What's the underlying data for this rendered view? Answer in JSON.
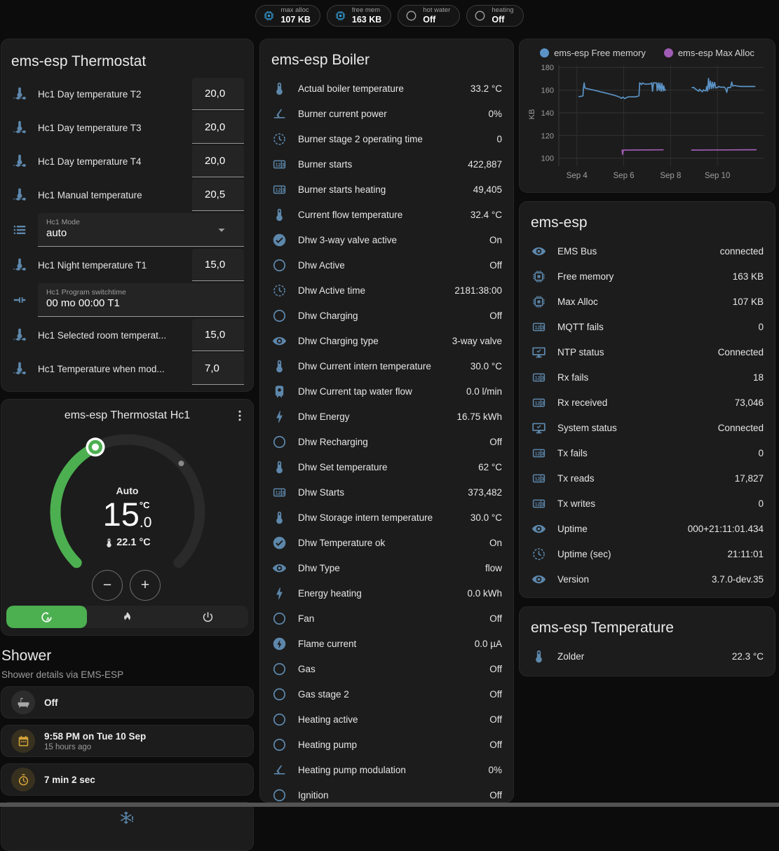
{
  "header": {
    "pills": [
      {
        "icon": "chip-icon",
        "tone": "blue",
        "label": "max alloc",
        "value": "107 KB"
      },
      {
        "icon": "chip-icon",
        "tone": "blue",
        "label": "free mem",
        "value": "163 KB"
      },
      {
        "icon": "circle-icon",
        "tone": "gray",
        "label": "hot water",
        "value": "Off"
      },
      {
        "icon": "circle-icon",
        "tone": "gray",
        "label": "heating",
        "value": "Off"
      }
    ]
  },
  "thermostat_card": {
    "title": "ems-esp Thermostat",
    "rows": [
      {
        "type": "number",
        "icon": "thermometer-water-icon",
        "label": "Hc1 Day temperature T2",
        "value": "20,0"
      },
      {
        "type": "number",
        "icon": "thermometer-water-icon",
        "label": "Hc1 Day temperature T3",
        "value": "20,0"
      },
      {
        "type": "number",
        "icon": "thermometer-water-icon",
        "label": "Hc1 Day temperature T4",
        "value": "20,0"
      },
      {
        "type": "number",
        "icon": "thermometer-water-icon",
        "label": "Hc1 Manual temperature",
        "value": "20,5"
      },
      {
        "type": "select",
        "icon": "format-list-icon",
        "label": "Hc1 Mode",
        "value": "auto"
      },
      {
        "type": "number",
        "icon": "thermometer-water-icon",
        "label": "Hc1 Night temperature T1",
        "value": "15,0"
      },
      {
        "type": "text",
        "icon": "pipe-valve-icon",
        "label": "Hc1 Program switchtime",
        "value": "00 mo 00:00 T1"
      },
      {
        "type": "number",
        "icon": "thermometer-water-icon",
        "label": "Hc1 Selected room temperat...",
        "value": "15,0"
      },
      {
        "type": "number",
        "icon": "thermometer-water-icon",
        "label": "Hc1 Temperature when mod...",
        "value": "7,0"
      }
    ]
  },
  "dial_card": {
    "title": "ems-esp Thermostat Hc1",
    "mode_label": "Auto",
    "target_whole": "15",
    "target_fraction": ".0",
    "target_unit": "°C",
    "current_temperature": "22.1 °C",
    "minus_label": "−",
    "plus_label": "+",
    "modes": [
      {
        "icon": "auto-mode-icon",
        "active": true
      },
      {
        "icon": "flame-icon",
        "active": false
      },
      {
        "icon": "power-icon",
        "active": false
      }
    ]
  },
  "shower": {
    "title": "Shower",
    "subtitle": "Shower details via EMS-ESP",
    "cards": [
      {
        "icon": "bathtub-icon",
        "tone": "gray",
        "primary": "Off",
        "secondary": ""
      },
      {
        "icon": "calendar-icon",
        "tone": "amber",
        "primary": "9:58 PM on Tue 10 Sep",
        "secondary": "15 hours ago"
      },
      {
        "icon": "timer-icon",
        "tone": "amber",
        "primary": "7 min 2 sec",
        "secondary": ""
      }
    ],
    "alert_icon": "snowflake-alert-icon"
  },
  "boiler_card": {
    "title": "ems-esp Boiler",
    "rows": [
      {
        "icon": "thermometer-icon",
        "label": "Actual boiler temperature",
        "value": "33.2 °C"
      },
      {
        "icon": "angle-acute-icon",
        "label": "Burner current power",
        "value": "0%"
      },
      {
        "icon": "clock-icon",
        "label": "Burner stage 2 operating time",
        "value": "0"
      },
      {
        "icon": "counter-icon",
        "label": "Burner starts",
        "value": "422,887"
      },
      {
        "icon": "counter-icon",
        "label": "Burner starts heating",
        "value": "49,405"
      },
      {
        "icon": "thermometer-icon",
        "label": "Current flow temperature",
        "value": "32.4 °C"
      },
      {
        "icon": "check-circle-icon",
        "label": "Dhw 3-way valve active",
        "value": "On"
      },
      {
        "icon": "circle-icon",
        "label": "Dhw Active",
        "value": "Off"
      },
      {
        "icon": "clock-icon",
        "label": "Dhw Active time",
        "value": "2181:38:00"
      },
      {
        "icon": "circle-icon",
        "label": "Dhw Charging",
        "value": "Off"
      },
      {
        "icon": "eye-icon",
        "label": "Dhw Charging type",
        "value": "3-way valve"
      },
      {
        "icon": "thermometer-icon",
        "label": "Dhw Current intern temperature",
        "value": "30.0 °C"
      },
      {
        "icon": "water-boiler-icon",
        "label": "Dhw Current tap water flow",
        "value": "0.0 l/min"
      },
      {
        "icon": "lightning-icon",
        "label": "Dhw Energy",
        "value": "16.75 kWh"
      },
      {
        "icon": "circle-icon",
        "label": "Dhw Recharging",
        "value": "Off"
      },
      {
        "icon": "thermometer-icon",
        "label": "Dhw Set temperature",
        "value": "62 °C"
      },
      {
        "icon": "counter-icon",
        "label": "Dhw Starts",
        "value": "373,482"
      },
      {
        "icon": "thermometer-icon",
        "label": "Dhw Storage intern temperature",
        "value": "30.0 °C"
      },
      {
        "icon": "check-circle-icon",
        "label": "Dhw Temperature ok",
        "value": "On"
      },
      {
        "icon": "eye-icon",
        "label": "Dhw Type",
        "value": "flow"
      },
      {
        "icon": "lightning-icon",
        "label": "Energy heating",
        "value": "0.0 kWh"
      },
      {
        "icon": "circle-icon",
        "label": "Fan",
        "value": "Off"
      },
      {
        "icon": "lightning-circle-icon",
        "label": "Flame current",
        "value": "0.0 µA"
      },
      {
        "icon": "circle-icon",
        "label": "Gas",
        "value": "Off"
      },
      {
        "icon": "circle-icon",
        "label": "Gas stage 2",
        "value": "Off"
      },
      {
        "icon": "circle-icon",
        "label": "Heating active",
        "value": "Off"
      },
      {
        "icon": "circle-icon",
        "label": "Heating pump",
        "value": "Off"
      },
      {
        "icon": "angle-acute-icon",
        "label": "Heating pump modulation",
        "value": "0%"
      },
      {
        "icon": "circle-icon",
        "label": "Ignition",
        "value": "Off"
      }
    ]
  },
  "system_card": {
    "title": "ems-esp",
    "rows": [
      {
        "icon": "eye-icon",
        "label": "EMS Bus",
        "value": "connected"
      },
      {
        "icon": "chip-icon",
        "label": "Free memory",
        "value": "163 KB"
      },
      {
        "icon": "chip-icon",
        "label": "Max Alloc",
        "value": "107 KB"
      },
      {
        "icon": "counter-icon",
        "label": "MQTT fails",
        "value": "0"
      },
      {
        "icon": "monitor-check-icon",
        "label": "NTP status",
        "value": "Connected"
      },
      {
        "icon": "counter-icon",
        "label": "Rx fails",
        "value": "18"
      },
      {
        "icon": "counter-icon",
        "label": "Rx received",
        "value": "73,046"
      },
      {
        "icon": "monitor-check-icon",
        "label": "System status",
        "value": "Connected"
      },
      {
        "icon": "counter-icon",
        "label": "Tx fails",
        "value": "0"
      },
      {
        "icon": "counter-icon",
        "label": "Tx reads",
        "value": "17,827"
      },
      {
        "icon": "counter-icon",
        "label": "Tx writes",
        "value": "0"
      },
      {
        "icon": "eye-icon",
        "label": "Uptime",
        "value": "000+21:11:01.434"
      },
      {
        "icon": "clock-icon",
        "label": "Uptime (sec)",
        "value": "21:11:01"
      },
      {
        "icon": "eye-icon",
        "label": "Version",
        "value": "3.7.0-dev.35"
      }
    ]
  },
  "temperature_card": {
    "title": "ems-esp Temperature",
    "rows": [
      {
        "icon": "thermometer-icon",
        "label": "Zolder",
        "value": "22.3 °C"
      }
    ]
  },
  "chart_data": {
    "type": "line",
    "ylabel": "KB",
    "yticks": [
      100,
      120,
      140,
      160,
      180
    ],
    "ylim": [
      95.5,
      182
    ],
    "xlim": [
      3.23,
      11.97
    ],
    "xticks": [
      {
        "v": 4,
        "label": "Sep 4"
      },
      {
        "v": 6,
        "label": "Sep 6"
      },
      {
        "v": 8,
        "label": "Sep 8"
      },
      {
        "v": 10,
        "label": "Sep 10"
      }
    ],
    "legend_position": "top",
    "grid": true,
    "series": [
      {
        "name": "ems-esp Free memory",
        "color": "#5b93c6",
        "segments": [
          [
            [
              4.09,
              154.3
            ],
            [
              4.2,
              154.6
            ],
            [
              4.26,
              155.0
            ],
            [
              4.28,
              162.0
            ],
            [
              4.31,
              166.3
            ],
            [
              4.34,
              162.0
            ],
            [
              4.4,
              161.5
            ],
            [
              4.55,
              160.8
            ],
            [
              4.7,
              160.1
            ],
            [
              4.85,
              159.4
            ],
            [
              5.0,
              158.6
            ],
            [
              5.15,
              157.9
            ],
            [
              5.3,
              157.1
            ],
            [
              5.45,
              156.3
            ],
            [
              5.6,
              155.5
            ],
            [
              5.7,
              154.8
            ],
            [
              5.78,
              154.2
            ],
            [
              5.85,
              153.6
            ],
            [
              5.9,
              152.8
            ],
            [
              5.97,
              153.9
            ],
            [
              6.04,
              152.6
            ],
            [
              6.1,
              153.2
            ],
            [
              6.18,
              154.1
            ],
            [
              6.5,
              154.1
            ],
            [
              6.6,
              154.6
            ],
            [
              6.65,
              155.0
            ],
            [
              6.68,
              166.5
            ],
            [
              6.76,
              164.9
            ],
            [
              6.8,
              166.3
            ],
            [
              6.9,
              165.3
            ],
            [
              7.05,
              165.4
            ],
            [
              7.15,
              165.6
            ],
            [
              7.2,
              166.4
            ],
            [
              7.23,
              159.0
            ],
            [
              7.27,
              166.4
            ],
            [
              7.4,
              166.3
            ],
            [
              7.43,
              159.5
            ],
            [
              7.47,
              166.4
            ],
            [
              7.52,
              159.8
            ],
            [
              7.55,
              166.2
            ],
            [
              7.6,
              159.0
            ],
            [
              7.63,
              166.0
            ],
            [
              7.68,
              159.3
            ],
            [
              7.71,
              163.8
            ],
            [
              7.75,
              159.8
            ],
            [
              7.78,
              160.2
            ]
          ],
          [
            [
              8.92,
              162.3
            ],
            [
              9.0,
              162.3
            ],
            [
              9.06,
              161.0
            ],
            [
              9.13,
              160.1
            ],
            [
              9.2,
              159.0
            ],
            [
              9.24,
              160.8
            ],
            [
              9.3,
              159.3
            ],
            [
              9.36,
              158.6
            ],
            [
              9.4,
              160.3
            ],
            [
              9.46,
              159.6
            ],
            [
              9.51,
              159.3
            ],
            [
              9.54,
              163.2
            ],
            [
              9.58,
              159.2
            ],
            [
              9.62,
              170.3
            ],
            [
              9.66,
              161.0
            ],
            [
              9.7,
              168.0
            ],
            [
              9.75,
              161.5
            ],
            [
              9.79,
              167.0
            ],
            [
              9.83,
              161.8
            ],
            [
              9.88,
              166.8
            ],
            [
              9.93,
              162.0
            ],
            [
              10.0,
              162.3
            ],
            [
              10.06,
              163.3
            ],
            [
              10.12,
              162.6
            ],
            [
              10.3,
              162.6
            ],
            [
              10.36,
              161.0
            ],
            [
              10.4,
              158.0
            ],
            [
              10.44,
              162.3
            ],
            [
              10.56,
              162.3
            ],
            [
              10.61,
              167.2
            ],
            [
              10.65,
              163.6
            ],
            [
              10.74,
              164.0
            ],
            [
              10.86,
              163.6
            ],
            [
              11.0,
              163.2
            ],
            [
              11.6,
              163.2
            ]
          ]
        ]
      },
      {
        "name": "ems-esp Max Alloc",
        "color": "#a05cb5",
        "segments": [
          [
            [
              5.93,
              107.2
            ],
            [
              5.95,
              103.3
            ],
            [
              5.98,
              107.2
            ],
            [
              7.68,
              107.4
            ]
          ],
          [
            [
              8.9,
              107.2
            ],
            [
              11.65,
              107.5
            ]
          ]
        ]
      }
    ]
  }
}
